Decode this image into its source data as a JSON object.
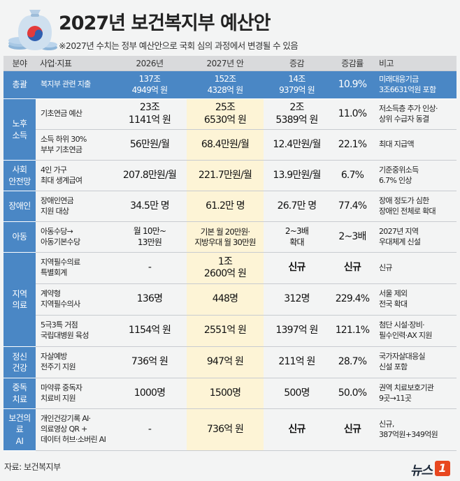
{
  "title": "2027년 보건복지부 예산안",
  "note": "※2027년 수치는 정부 예산안으로 국회 심의 과정에서 변경될 수 있음",
  "headers": {
    "category": "분야",
    "item": "사업·지표",
    "y2026": "2026년",
    "y2027": "2027년 안",
    "change": "증감",
    "rate": "증감률",
    "remark": "비고"
  },
  "rows": {
    "total": {
      "category": "총괄",
      "item": "복지부 관련 지출",
      "y2026": [
        "137조",
        "4949억 원"
      ],
      "y2027": [
        "152조",
        "4328억 원"
      ],
      "change": [
        "14조",
        "9379억 원"
      ],
      "rate": "10.9%",
      "remark": [
        "미래대응기금",
        "3조6631억원 포함"
      ]
    },
    "elderly": {
      "category": [
        "노후",
        "소득"
      ],
      "r1": {
        "item": "기초연금 예산",
        "y2026": [
          "23조",
          "1141억 원"
        ],
        "y2027": [
          "25조",
          "6530억 원"
        ],
        "change": [
          "2조",
          "5389억 원"
        ],
        "rate": "11.0%",
        "remark": [
          "저소득층 추가 인상·",
          "상위 수급자 동결"
        ]
      },
      "r2": {
        "item": [
          "소득 하위 30%",
          "부부 기초연금"
        ],
        "y2026": "56만원/월",
        "y2027": "68.4만원/월",
        "change": "12.4만원/월",
        "rate": "22.1%",
        "remark": "최대 지급액"
      }
    },
    "safety": {
      "category": [
        "사회",
        "안전망"
      ],
      "item": [
        "4인 가구",
        "최대 생계급여"
      ],
      "y2026": "207.8만원/월",
      "y2027": "221.7만원/월",
      "change": "13.9만원/월",
      "rate": "6.7%",
      "remark": [
        "기준중위소득",
        "6.7% 인상"
      ]
    },
    "disabled": {
      "category": "장애인",
      "item": [
        "장애인연금",
        "지원 대상"
      ],
      "y2026": "34.5만 명",
      "y2027": "61.2만 명",
      "change": "26.7만 명",
      "rate": "77.4%",
      "remark": [
        "장애 정도가 심한",
        "장애인 전체로 확대"
      ]
    },
    "child": {
      "category": "아동",
      "item": [
        "아동수당→",
        "아동기본수당"
      ],
      "y2026": [
        "월 10만~",
        "13만원"
      ],
      "y2027": [
        "기본 월 20만원·",
        "지방우대 월 30만원"
      ],
      "change": [
        "2~3배",
        "확대"
      ],
      "rate": "2~3배",
      "remark": [
        "2027년 지역",
        "우대체계 신설"
      ]
    },
    "regional": {
      "category": [
        "지역",
        "의료"
      ],
      "r1": {
        "item": [
          "지역필수의료",
          "특별회계"
        ],
        "y2026": "-",
        "y2027": [
          "1조",
          "2600억 원"
        ],
        "change": "신규",
        "rate": "신규",
        "remark": "신규"
      },
      "r2": {
        "item": [
          "계약형",
          "지역필수의사"
        ],
        "y2026": "136명",
        "y2027": "448명",
        "change": "312명",
        "rate": "229.4%",
        "remark": [
          "서울 제외",
          "전국 확대"
        ]
      },
      "r3": {
        "item": [
          "5극3특 거점",
          "국립대병원 육성"
        ],
        "y2026": "1154억 원",
        "y2027": "2551억 원",
        "change": "1397억 원",
        "rate": "121.1%",
        "remark": [
          "첨단 시설·장비·",
          "필수인력·AX 지원"
        ]
      }
    },
    "mental": {
      "category": [
        "정신",
        "건강"
      ],
      "item": [
        "자살예방",
        "전주기 지원"
      ],
      "y2026": "736억 원",
      "y2027": "947억 원",
      "change": "211억 원",
      "rate": "28.7%",
      "remark": [
        "국가자살대응실",
        "신설 포함"
      ]
    },
    "addiction": {
      "category": [
        "중독",
        "치료"
      ],
      "item": [
        "마약류 중독자",
        "치료비 지원"
      ],
      "y2026": "1000명",
      "y2027": "1500명",
      "change": "500명",
      "rate": "50.0%",
      "remark": [
        "권역 치료보호기관",
        "9곳→11곳"
      ]
    },
    "ai": {
      "category": [
        "보건의료",
        "AI"
      ],
      "item": [
        "개인건강기록 AI·",
        "의료영상 QR +",
        "데이터 허브·소버린 AI"
      ],
      "y2026": "-",
      "y2027": "736억 원",
      "change": "신규",
      "rate": "신규",
      "remark": [
        "신규,",
        "387억원+349억원"
      ]
    }
  },
  "footer": "자료: 보건복지부",
  "brand": {
    "name": "뉴스",
    "mark": "1"
  },
  "colors": {
    "category_blue": "#4a87c5",
    "highlight_2027": "#fdf4d6",
    "header_gray": "#d9dadc",
    "brand_orange": "#e8471f"
  }
}
